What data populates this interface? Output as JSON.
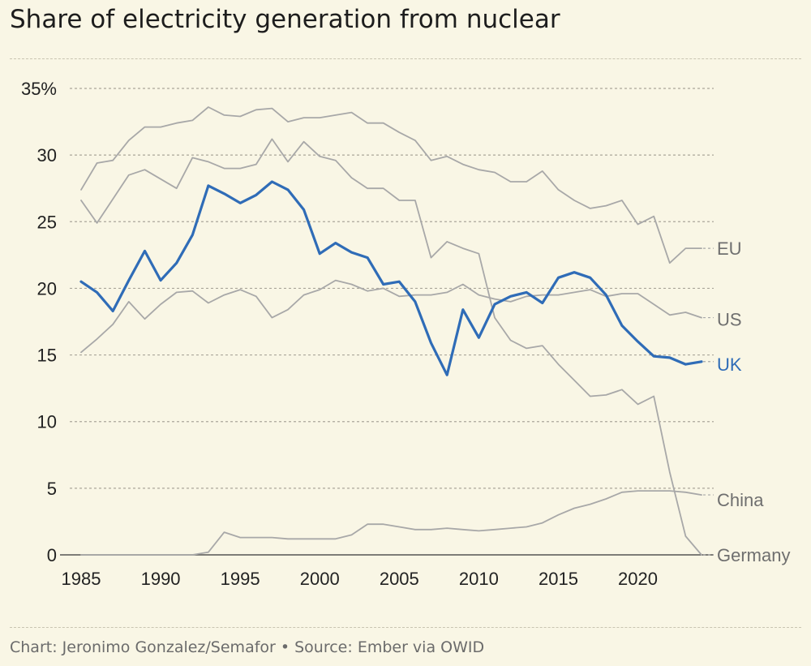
{
  "title": "Share of electricity generation from nuclear",
  "source": "Chart: Jeronimo Gonzalez/Semafor • Source: Ember via OWID",
  "colors": {
    "background": "#f9f6e5",
    "highlight": "#2f6cb7",
    "other": "#a8a8a8",
    "grid": "#aaa69a",
    "label_gray": "#6f6f6f"
  },
  "chart_data": {
    "type": "line",
    "title": "Share of electricity generation from nuclear",
    "xlabel": "",
    "ylabel": "",
    "xlim": [
      1985,
      2024
    ],
    "ylim": [
      0,
      35
    ],
    "x_ticks": [
      1985,
      1990,
      1995,
      2000,
      2005,
      2010,
      2015,
      2020
    ],
    "y_ticks": [
      0,
      5,
      10,
      15,
      20,
      25,
      30,
      35
    ],
    "y_tick_labels": [
      "0",
      "5",
      "10",
      "15",
      "20",
      "25",
      "30",
      "35%"
    ],
    "x_tick_labels": [
      "1985",
      "1990",
      "1995",
      "2000",
      "2005",
      "2010",
      "2015",
      "2020"
    ],
    "x": [
      1985,
      1986,
      1987,
      1988,
      1989,
      1990,
      1991,
      1992,
      1993,
      1994,
      1995,
      1996,
      1997,
      1998,
      1999,
      2000,
      2001,
      2002,
      2003,
      2004,
      2005,
      2006,
      2007,
      2008,
      2009,
      2010,
      2011,
      2012,
      2013,
      2014,
      2015,
      2016,
      2017,
      2018,
      2019,
      2020,
      2021,
      2022,
      2023,
      2024
    ],
    "series": [
      {
        "name": "EU",
        "label": "EU",
        "highlight": false,
        "values": [
          27.4,
          29.4,
          29.6,
          31.1,
          32.1,
          32.1,
          32.4,
          32.6,
          33.6,
          33.0,
          32.9,
          33.4,
          33.5,
          32.5,
          32.8,
          32.8,
          33.0,
          33.2,
          32.4,
          32.4,
          31.7,
          31.1,
          29.6,
          29.9,
          29.3,
          28.9,
          28.7,
          28.0,
          28.0,
          28.8,
          27.4,
          26.6,
          26.0,
          26.2,
          26.6,
          24.8,
          25.4,
          21.9,
          23.0,
          23.0
        ]
      },
      {
        "name": "US",
        "label": "US",
        "highlight": false,
        "values": [
          15.2,
          16.2,
          17.3,
          19.0,
          17.7,
          18.8,
          19.7,
          19.8,
          18.9,
          19.5,
          19.9,
          19.4,
          17.8,
          18.4,
          19.5,
          19.9,
          20.6,
          20.3,
          19.8,
          20.0,
          19.4,
          19.5,
          19.5,
          19.7,
          20.3,
          19.5,
          19.2,
          19.0,
          19.4,
          19.5,
          19.5,
          19.7,
          19.9,
          19.4,
          19.6,
          19.6,
          18.8,
          18.0,
          18.2,
          17.8
        ]
      },
      {
        "name": "UK",
        "label": "UK",
        "highlight": true,
        "values": [
          20.5,
          19.7,
          18.3,
          20.6,
          22.8,
          20.6,
          21.9,
          24.0,
          27.7,
          27.1,
          26.4,
          27.0,
          28.0,
          27.4,
          25.9,
          22.6,
          23.4,
          22.7,
          22.3,
          20.3,
          20.5,
          19.0,
          15.9,
          13.5,
          18.4,
          16.3,
          18.8,
          19.4,
          19.7,
          18.9,
          20.8,
          21.2,
          20.8,
          19.5,
          17.2,
          16.0,
          14.9,
          14.8,
          14.3,
          14.5
        ]
      },
      {
        "name": "Germany",
        "label": "Germany",
        "highlight": false,
        "values": [
          26.6,
          24.9,
          26.7,
          28.5,
          28.9,
          28.2,
          27.5,
          29.8,
          29.5,
          29.0,
          29.0,
          29.3,
          31.2,
          29.5,
          31.0,
          29.9,
          29.6,
          28.3,
          27.5,
          27.5,
          26.6,
          26.6,
          22.3,
          23.5,
          23.0,
          22.6,
          17.8,
          16.1,
          15.5,
          15.7,
          14.3,
          13.1,
          11.9,
          12.0,
          12.4,
          11.3,
          11.9,
          6.2,
          1.4,
          0.0
        ]
      },
      {
        "name": "China",
        "label": "China",
        "highlight": false,
        "values": [
          0,
          0,
          0,
          0,
          0,
          0,
          0,
          0,
          0.2,
          1.7,
          1.3,
          1.3,
          1.3,
          1.2,
          1.2,
          1.2,
          1.2,
          1.5,
          2.3,
          2.3,
          2.1,
          1.9,
          1.9,
          2.0,
          1.9,
          1.8,
          1.9,
          2.0,
          2.1,
          2.4,
          3.0,
          3.5,
          3.8,
          4.2,
          4.7,
          4.8,
          4.8,
          4.8,
          4.7,
          4.5
        ]
      }
    ]
  }
}
